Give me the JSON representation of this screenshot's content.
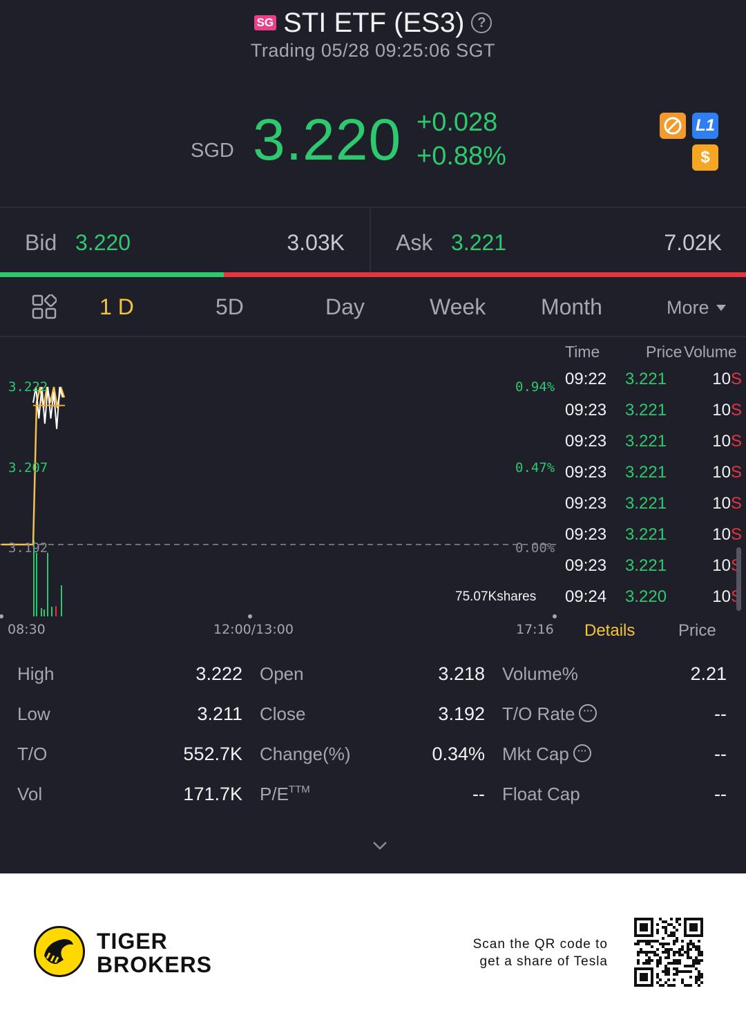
{
  "header": {
    "market_badge": "SG",
    "title": "STI ETF (ES3)",
    "status": "Trading 05/28 09:25:06 SGT"
  },
  "quote": {
    "currency": "SGD",
    "last_price": "3.220",
    "change_abs": "+0.028",
    "change_pct": "+0.88%",
    "badge_level": "L1",
    "badge_dollar": "$"
  },
  "bidask": {
    "bid_label": "Bid",
    "bid_price": "3.220",
    "bid_size": "3.03K",
    "ask_label": "Ask",
    "ask_price": "3.221",
    "ask_size": "7.02K",
    "bid_ratio": 0.3
  },
  "tabs": {
    "items": [
      "1 D",
      "5D",
      "Day",
      "Week",
      "Month"
    ],
    "active": "1 D",
    "more": "More"
  },
  "chart": {
    "y_labels": [
      "3.222",
      "3.207",
      "3.192"
    ],
    "pct_labels": [
      "0.94%",
      "0.47%",
      "0.00%"
    ],
    "x_labels": [
      "08:30",
      "12:00/13:00",
      "17:16"
    ],
    "volume_label": "75.07Kshares",
    "colors": {
      "up": "#2ec96f",
      "down": "#e53440",
      "price_line": "#ffffff",
      "avg_line": "#f5a623"
    }
  },
  "chart_data": {
    "type": "line",
    "x": [
      "08:30",
      "09:00",
      "09:01",
      "09:05",
      "09:08",
      "09:11",
      "09:14",
      "09:17",
      "09:20",
      "09:22",
      "09:24"
    ],
    "series": [
      {
        "values": [
          3.192,
          3.192,
          3.219,
          3.222,
          3.218,
          3.222,
          3.219,
          3.222,
          3.218,
          3.222,
          3.22
        ]
      }
    ],
    "ylim": [
      3.192,
      3.222
    ],
    "x_ticks": [
      "08:30",
      "12:00/13:00",
      "17:16"
    ],
    "y_ticks": [
      "3.222",
      "3.207",
      "3.192"
    ],
    "grid": false
  },
  "ticks": {
    "headers": {
      "time": "Time",
      "price": "Price",
      "volume": "Volume"
    },
    "rows": [
      {
        "time": "09:22",
        "price": "3.221",
        "vol": "10",
        "side": "S"
      },
      {
        "time": "09:23",
        "price": "3.221",
        "vol": "10",
        "side": "S"
      },
      {
        "time": "09:23",
        "price": "3.221",
        "vol": "10",
        "side": "S"
      },
      {
        "time": "09:23",
        "price": "3.221",
        "vol": "10",
        "side": "S"
      },
      {
        "time": "09:23",
        "price": "3.221",
        "vol": "10",
        "side": "S"
      },
      {
        "time": "09:23",
        "price": "3.221",
        "vol": "10",
        "side": "S"
      },
      {
        "time": "09:23",
        "price": "3.221",
        "vol": "10",
        "side": "S"
      },
      {
        "time": "09:24",
        "price": "3.220",
        "vol": "10",
        "side": "S"
      }
    ],
    "details_tab": "Details",
    "price_tab": "Price"
  },
  "stats": {
    "high_lbl": "High",
    "high": "3.222",
    "low_lbl": "Low",
    "low": "3.211",
    "to_lbl": "T/O",
    "to": "552.7K",
    "vol_lbl": "Vol",
    "vol": "171.7K",
    "open_lbl": "Open",
    "open": "3.218",
    "close_lbl": "Close",
    "close": "3.192",
    "chg_lbl": "Change(%)",
    "chg": "0.34%",
    "pe_lbl": "P/E",
    "pe_sup": "TTM",
    "pe": "--",
    "volpct_lbl": "Volume%",
    "volpct": "2.21",
    "torate_lbl": "T/O Rate",
    "torate": "--",
    "mktcap_lbl": "Mkt Cap",
    "mktcap": "--",
    "floatcap_lbl": "Float Cap",
    "floatcap": "--"
  },
  "footer": {
    "brand_line1": "TIGER",
    "brand_line2": "BROKERS",
    "scan_line1": "Scan the QR code to",
    "scan_line2": "get a share of Tesla"
  }
}
